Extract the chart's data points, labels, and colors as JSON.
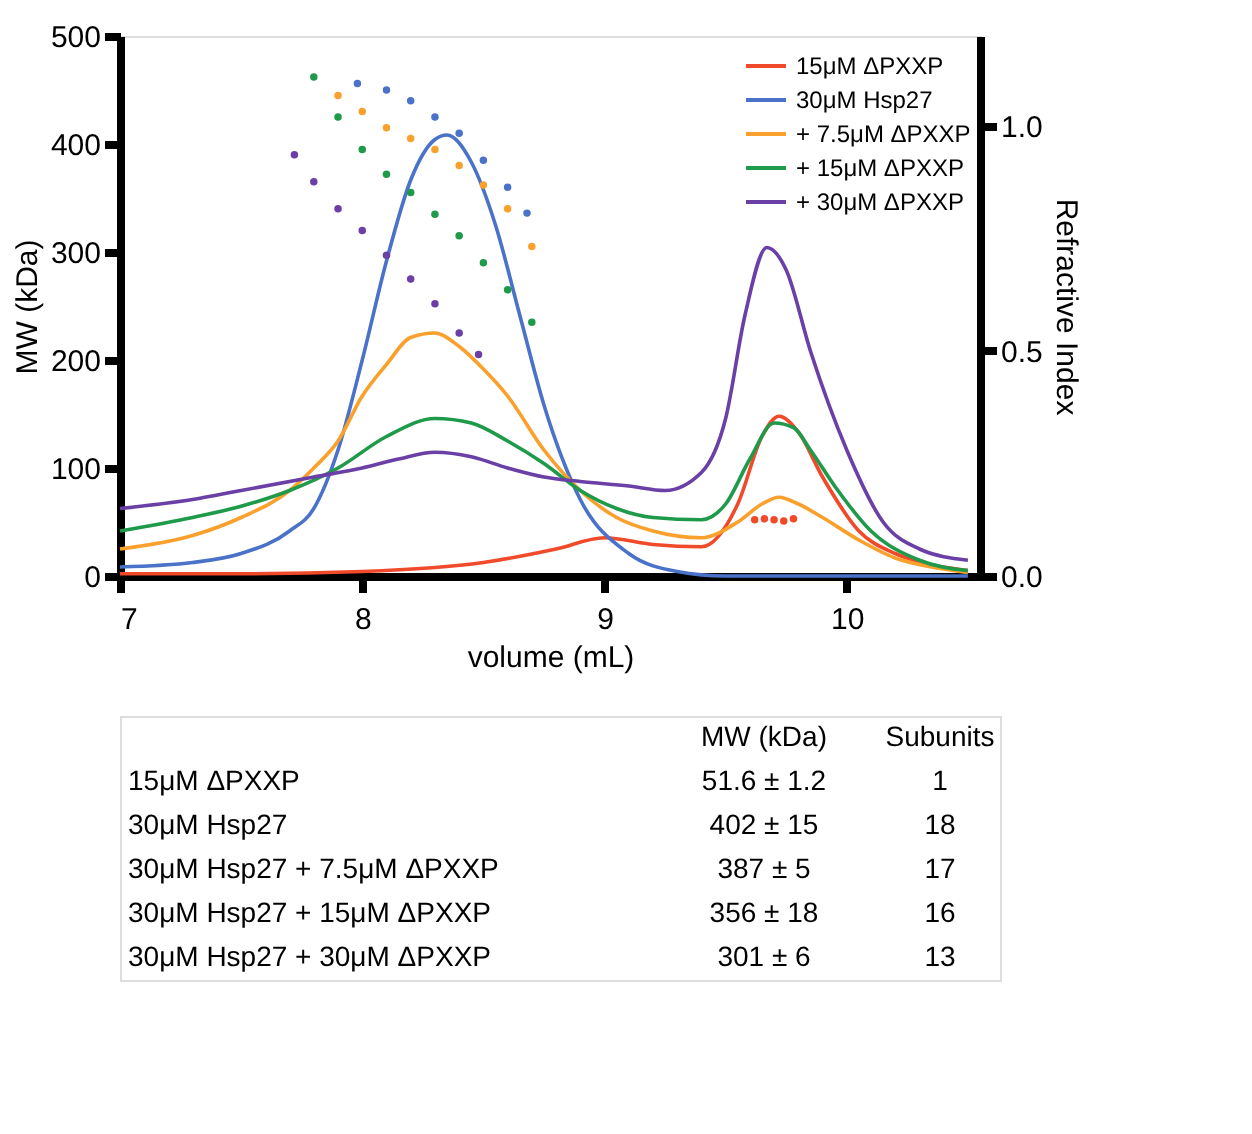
{
  "chart_data": {
    "type": "line",
    "xlabel": "volume (mL)",
    "ylabel": "MW (kDa)",
    "y2label": "Refractive Index",
    "xlim": [
      7,
      10.55
    ],
    "xticks": [
      7,
      8,
      9,
      10
    ],
    "ylim": [
      0,
      500
    ],
    "yticks": [
      0,
      100,
      200,
      300,
      400,
      500
    ],
    "y2lim": [
      0,
      1.2
    ],
    "y2ticks": [
      {
        "value": 0,
        "label": "0.0"
      },
      {
        "value": 0.5,
        "label": "0.5"
      },
      {
        "value": 1,
        "label": "1.0"
      }
    ],
    "grid": false,
    "legend": "top right",
    "line_style": "solid",
    "series": [
      {
        "name": "15μM ΔPXXP",
        "color": "#f04a2a",
        "axis": "y2",
        "x": [
          7,
          7.5,
          8,
          8.5,
          8.8,
          9,
          9.2,
          9.4,
          9.55,
          9.65,
          9.72,
          9.8,
          9.9,
          10.05,
          10.2,
          10.35,
          10.5
        ],
        "values": [
          0.005,
          0.005,
          0.01,
          0.03,
          0.06,
          0.085,
          0.07,
          0.065,
          0.16,
          0.31,
          0.355,
          0.32,
          0.22,
          0.1,
          0.05,
          0.025,
          0.012
        ]
      },
      {
        "name": "30μM Hsp27",
        "color": "#4a72c8",
        "axis": "y2",
        "x": [
          7,
          7.3,
          7.5,
          7.7,
          7.8,
          7.9,
          8,
          8.1,
          8.2,
          8.3,
          8.35,
          8.45,
          8.55,
          8.65,
          8.75,
          8.9,
          9.1,
          9.3,
          9.5,
          10,
          10.5
        ],
        "values": [
          0.02,
          0.03,
          0.05,
          0.1,
          0.15,
          0.28,
          0.48,
          0.7,
          0.88,
          0.97,
          0.98,
          0.92,
          0.78,
          0.58,
          0.38,
          0.17,
          0.05,
          0.01,
          0,
          0,
          0
        ]
      },
      {
        "name": "+ 7.5μM ΔPXXP",
        "color": "#f9a12c",
        "axis": "y2",
        "x": [
          7,
          7.3,
          7.5,
          7.7,
          7.8,
          7.9,
          8,
          8.1,
          8.2,
          8.3,
          8.4,
          8.5,
          8.6,
          8.75,
          8.9,
          9.05,
          9.2,
          9.4,
          9.55,
          9.65,
          9.72,
          9.8,
          9.9,
          10.05,
          10.2,
          10.35,
          10.5
        ],
        "values": [
          0.06,
          0.09,
          0.13,
          0.19,
          0.24,
          0.3,
          0.4,
          0.47,
          0.53,
          0.54,
          0.51,
          0.46,
          0.4,
          0.28,
          0.19,
          0.13,
          0.1,
          0.085,
          0.12,
          0.16,
          0.175,
          0.16,
          0.13,
          0.08,
          0.04,
          0.02,
          0.008
        ]
      },
      {
        "name": "+ 15μM ΔPXXP",
        "color": "#1e9a4a",
        "axis": "y2",
        "x": [
          7,
          7.3,
          7.5,
          7.7,
          7.9,
          8.1,
          8.3,
          8.45,
          8.6,
          8.75,
          8.9,
          9.05,
          9.2,
          9.4,
          9.5,
          9.6,
          9.7,
          9.78,
          9.85,
          9.95,
          10.1,
          10.3,
          10.5
        ],
        "values": [
          0.1,
          0.13,
          0.155,
          0.19,
          0.24,
          0.31,
          0.35,
          0.34,
          0.3,
          0.25,
          0.19,
          0.15,
          0.13,
          0.125,
          0.16,
          0.26,
          0.34,
          0.33,
          0.28,
          0.2,
          0.1,
          0.035,
          0.012
        ]
      },
      {
        "name": "+ 30μM ΔPXXP",
        "color": "#6a3fa6",
        "axis": "y2",
        "x": [
          7,
          7.3,
          7.5,
          7.8,
          8,
          8.15,
          8.3,
          8.45,
          8.6,
          8.75,
          8.9,
          9.1,
          9.25,
          9.4,
          9.5,
          9.58,
          9.67,
          9.75,
          9.85,
          10,
          10.15,
          10.3,
          10.5
        ],
        "values": [
          0.15,
          0.17,
          0.19,
          0.22,
          0.24,
          0.26,
          0.275,
          0.265,
          0.24,
          0.22,
          0.21,
          0.2,
          0.19,
          0.23,
          0.35,
          0.58,
          0.73,
          0.68,
          0.5,
          0.28,
          0.12,
          0.06,
          0.035
        ]
      },
      {
        "type": "scatter",
        "marker": "circle",
        "color": "#4a72c8",
        "x": [
          7.98,
          8.1,
          8.2,
          8.3,
          8.4,
          8.5,
          8.6,
          8.68
        ],
        "values": [
          456,
          450,
          440,
          425,
          410,
          385,
          360,
          336
        ]
      },
      {
        "type": "scatter",
        "marker": "circle",
        "color": "#f9a12c",
        "x": [
          7.9,
          8.0,
          8.1,
          8.2,
          8.3,
          8.4,
          8.5,
          8.6,
          8.7
        ],
        "values": [
          445,
          430,
          415,
          405,
          395,
          380,
          362,
          340,
          305
        ]
      },
      {
        "type": "scatter",
        "marker": "circle",
        "color": "#1e9a4a",
        "x": [
          7.8,
          7.9,
          8.0,
          8.1,
          8.2,
          8.3,
          8.4,
          8.5,
          8.6,
          8.7
        ],
        "values": [
          462,
          425,
          395,
          372,
          355,
          335,
          315,
          290,
          265,
          235
        ]
      },
      {
        "type": "scatter",
        "marker": "circle",
        "color": "#6a3fa6",
        "x": [
          7.72,
          7.8,
          7.9,
          8.0,
          8.1,
          8.2,
          8.3,
          8.4,
          8.48
        ],
        "values": [
          390,
          365,
          340,
          320,
          297,
          275,
          252,
          225,
          205
        ]
      },
      {
        "type": "scatter",
        "marker": "circle",
        "color": "#f04a2a",
        "x": [
          9.62,
          9.66,
          9.7,
          9.74,
          9.78
        ],
        "values": [
          52,
          53,
          52,
          51,
          53
        ]
      }
    ],
    "annotations": [
      "MW (kDa)",
      "Subunits",
      "15μM ΔPXXP",
      "51.6 ± 1.2",
      "1",
      "30μM Hsp27",
      "402 ± 15",
      "18",
      "30μM Hsp27 + 7.5μM ΔPXXP",
      "387 ± 5",
      "17",
      "30μM Hsp27 + 15μM ΔPXXP",
      "356 ± 18",
      "16",
      "30μM Hsp27 + 30μM ΔPXXP",
      "301 ± 6",
      "13"
    ]
  }
}
